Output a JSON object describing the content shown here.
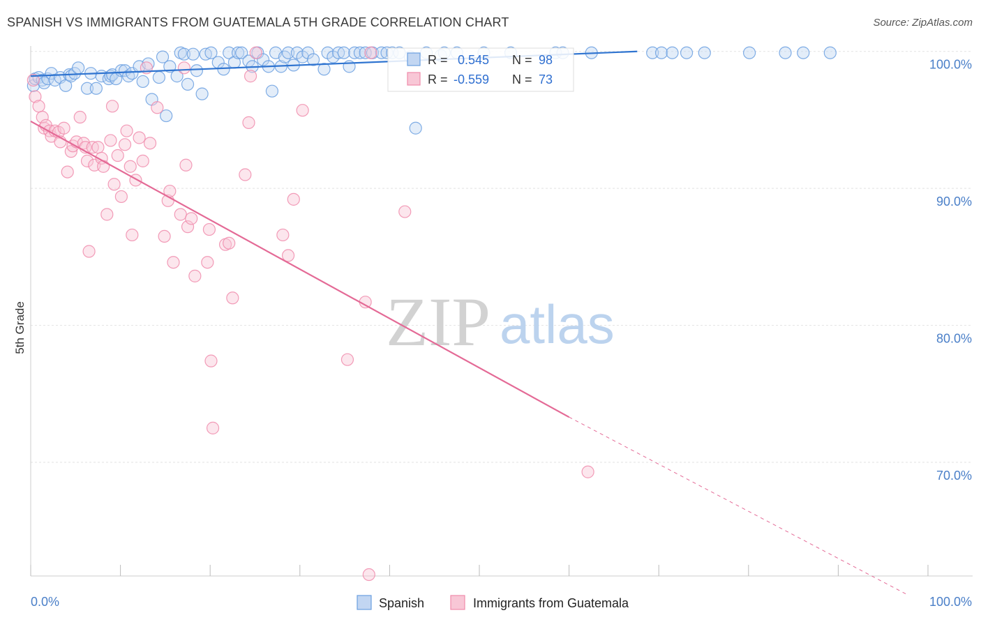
{
  "title": "SPANISH VS IMMIGRANTS FROM GUATEMALA 5TH GRADE CORRELATION CHART",
  "source": "Source: ZipAtlas.com",
  "watermark": {
    "zip": "ZIP",
    "atlas": "atlas"
  },
  "colors": {
    "spanish": "#6a9fe0",
    "spanish_line": "#2f74d0",
    "guatemala": "#f08bab",
    "guatemala_line": "#e46a96",
    "grid": "#e2e2e2",
    "tick_text": "#4a7fc8"
  },
  "stats_box": {
    "rows": [
      {
        "r_label": "R =",
        "r_value": "0.545",
        "n_label": "N =",
        "n_value": "98"
      },
      {
        "r_label": "R =",
        "r_value": "-0.559",
        "n_label": "N =",
        "n_value": "73"
      }
    ]
  },
  "chart_data": {
    "type": "scatter",
    "title": "SPANISH VS IMMIGRANTS FROM GUATEMALA 5TH GRADE CORRELATION CHART",
    "xlabel": "",
    "ylabel": "5th Grade",
    "xlim": [
      0,
      100
    ],
    "ylim": [
      61.7,
      100.7
    ],
    "x_tick_labels": [
      "0.0%",
      "100.0%"
    ],
    "y_ticks": [
      100,
      90,
      80,
      70
    ],
    "y_tick_labels": [
      "100.0%",
      "90.0%",
      "80.0%",
      "70.0%"
    ],
    "grid": true,
    "legend_position": "bottom-center",
    "series": [
      {
        "name": "Spanish",
        "trend": {
          "x0": 0.0,
          "y0": 98.2,
          "x1": 67.6,
          "y1": 100.0
        },
        "points": [
          [
            0.3,
            97.5
          ],
          [
            0.5,
            98.0
          ],
          [
            0.9,
            98.1
          ],
          [
            1.3,
            97.9
          ],
          [
            1.5,
            97.7
          ],
          [
            1.9,
            98.0
          ],
          [
            2.3,
            98.4
          ],
          [
            2.7,
            97.9
          ],
          [
            3.3,
            98.1
          ],
          [
            3.9,
            97.5
          ],
          [
            4.3,
            98.3
          ],
          [
            4.5,
            98.2
          ],
          [
            4.9,
            98.4
          ],
          [
            5.3,
            98.8
          ],
          [
            6.3,
            97.3
          ],
          [
            6.7,
            98.4
          ],
          [
            7.3,
            97.3
          ],
          [
            7.9,
            98.2
          ],
          [
            8.7,
            98.0
          ],
          [
            8.9,
            98.2
          ],
          [
            9.1,
            98.3
          ],
          [
            9.5,
            98.0
          ],
          [
            10.1,
            98.6
          ],
          [
            10.5,
            98.6
          ],
          [
            10.9,
            98.2
          ],
          [
            11.3,
            98.4
          ],
          [
            12.1,
            98.9
          ],
          [
            12.5,
            97.8
          ],
          [
            13.1,
            99.1
          ],
          [
            13.5,
            96.5
          ],
          [
            14.3,
            98.1
          ],
          [
            14.7,
            99.6
          ],
          [
            15.1,
            95.3
          ],
          [
            15.5,
            98.9
          ],
          [
            16.3,
            98.2
          ],
          [
            16.7,
            99.9
          ],
          [
            17.1,
            99.8
          ],
          [
            17.5,
            97.6
          ],
          [
            18.1,
            99.8
          ],
          [
            18.5,
            98.6
          ],
          [
            19.1,
            96.9
          ],
          [
            19.5,
            99.8
          ],
          [
            20.1,
            99.9
          ],
          [
            20.9,
            99.2
          ],
          [
            21.5,
            98.7
          ],
          [
            22.1,
            99.9
          ],
          [
            22.7,
            99.2
          ],
          [
            23.1,
            99.9
          ],
          [
            23.5,
            99.9
          ],
          [
            24.3,
            99.3
          ],
          [
            24.7,
            98.9
          ],
          [
            25.3,
            99.9
          ],
          [
            25.9,
            99.4
          ],
          [
            26.5,
            98.9
          ],
          [
            26.9,
            97.1
          ],
          [
            27.3,
            99.9
          ],
          [
            27.9,
            98.9
          ],
          [
            28.3,
            99.6
          ],
          [
            28.7,
            99.9
          ],
          [
            29.3,
            99.0
          ],
          [
            29.7,
            99.9
          ],
          [
            30.3,
            99.6
          ],
          [
            30.9,
            99.9
          ],
          [
            31.5,
            99.4
          ],
          [
            32.7,
            98.7
          ],
          [
            33.1,
            99.9
          ],
          [
            33.7,
            99.6
          ],
          [
            34.3,
            99.9
          ],
          [
            34.9,
            99.9
          ],
          [
            35.5,
            98.9
          ],
          [
            36.1,
            99.9
          ],
          [
            36.7,
            99.9
          ],
          [
            37.3,
            99.9
          ],
          [
            38.1,
            99.9
          ],
          [
            39.1,
            99.9
          ],
          [
            39.7,
            99.9
          ],
          [
            40.3,
            99.9
          ],
          [
            41.1,
            99.9
          ],
          [
            42.3,
            99.6
          ],
          [
            42.9,
            94.4
          ],
          [
            44.1,
            99.9
          ],
          [
            45.7,
            99.7
          ],
          [
            46.1,
            99.9
          ],
          [
            47.5,
            99.9
          ],
          [
            50.5,
            99.9
          ],
          [
            53.5,
            99.9
          ],
          [
            58.5,
            99.9
          ],
          [
            59.3,
            99.9
          ],
          [
            62.5,
            99.9
          ],
          [
            69.3,
            99.9
          ],
          [
            70.3,
            99.9
          ],
          [
            71.5,
            99.9
          ],
          [
            73.1,
            99.9
          ],
          [
            75.1,
            99.9
          ],
          [
            80.1,
            99.9
          ],
          [
            84.1,
            99.9
          ],
          [
            86.1,
            99.9
          ],
          [
            89.1,
            99.9
          ]
        ]
      },
      {
        "name": "Immigrants from Guatemala",
        "trend": {
          "x0": 0.0,
          "y0": 94.9,
          "x1": 60.0,
          "y1": 73.3
        },
        "trend_dashed": {
          "x0": 60.0,
          "y0": 73.3,
          "x1": 97.8,
          "y1": 60.3
        },
        "points": [
          [
            0.3,
            97.9
          ],
          [
            0.5,
            96.7
          ],
          [
            0.9,
            96.0
          ],
          [
            1.3,
            95.2
          ],
          [
            1.5,
            94.4
          ],
          [
            1.7,
            94.6
          ],
          [
            2.1,
            94.2
          ],
          [
            2.3,
            93.8
          ],
          [
            2.7,
            94.2
          ],
          [
            3.1,
            94.1
          ],
          [
            3.3,
            93.4
          ],
          [
            3.7,
            94.4
          ],
          [
            4.1,
            91.2
          ],
          [
            4.5,
            92.7
          ],
          [
            4.7,
            93.1
          ],
          [
            5.1,
            93.4
          ],
          [
            5.5,
            95.2
          ],
          [
            5.9,
            93.3
          ],
          [
            6.1,
            93.0
          ],
          [
            6.3,
            92.0
          ],
          [
            6.5,
            85.4
          ],
          [
            6.9,
            93.0
          ],
          [
            7.1,
            91.7
          ],
          [
            7.5,
            93.0
          ],
          [
            7.9,
            92.2
          ],
          [
            8.1,
            91.6
          ],
          [
            8.5,
            88.1
          ],
          [
            8.9,
            93.5
          ],
          [
            9.1,
            96.0
          ],
          [
            9.3,
            90.3
          ],
          [
            9.7,
            92.4
          ],
          [
            10.1,
            89.4
          ],
          [
            10.5,
            93.2
          ],
          [
            10.7,
            94.2
          ],
          [
            11.1,
            91.6
          ],
          [
            11.3,
            86.6
          ],
          [
            11.7,
            90.6
          ],
          [
            12.1,
            93.7
          ],
          [
            12.5,
            92.0
          ],
          [
            12.9,
            98.8
          ],
          [
            13.3,
            93.3
          ],
          [
            14.1,
            95.9
          ],
          [
            14.9,
            86.5
          ],
          [
            15.3,
            89.1
          ],
          [
            15.5,
            89.8
          ],
          [
            15.9,
            84.6
          ],
          [
            16.7,
            88.1
          ],
          [
            17.1,
            98.8
          ],
          [
            17.3,
            91.7
          ],
          [
            17.5,
            87.2
          ],
          [
            17.9,
            87.8
          ],
          [
            18.3,
            83.6
          ],
          [
            19.7,
            84.6
          ],
          [
            19.9,
            87.0
          ],
          [
            20.1,
            77.4
          ],
          [
            20.3,
            72.5
          ],
          [
            21.7,
            85.9
          ],
          [
            22.1,
            86.0
          ],
          [
            22.5,
            82.0
          ],
          [
            23.9,
            91.0
          ],
          [
            24.3,
            94.8
          ],
          [
            24.5,
            98.2
          ],
          [
            25.1,
            99.9
          ],
          [
            28.1,
            86.6
          ],
          [
            28.7,
            85.1
          ],
          [
            29.3,
            89.2
          ],
          [
            30.3,
            95.7
          ],
          [
            35.3,
            77.5
          ],
          [
            37.3,
            81.7
          ],
          [
            37.7,
            61.8
          ],
          [
            37.9,
            99.9
          ],
          [
            41.7,
            88.3
          ],
          [
            62.1,
            69.3
          ]
        ]
      }
    ]
  }
}
